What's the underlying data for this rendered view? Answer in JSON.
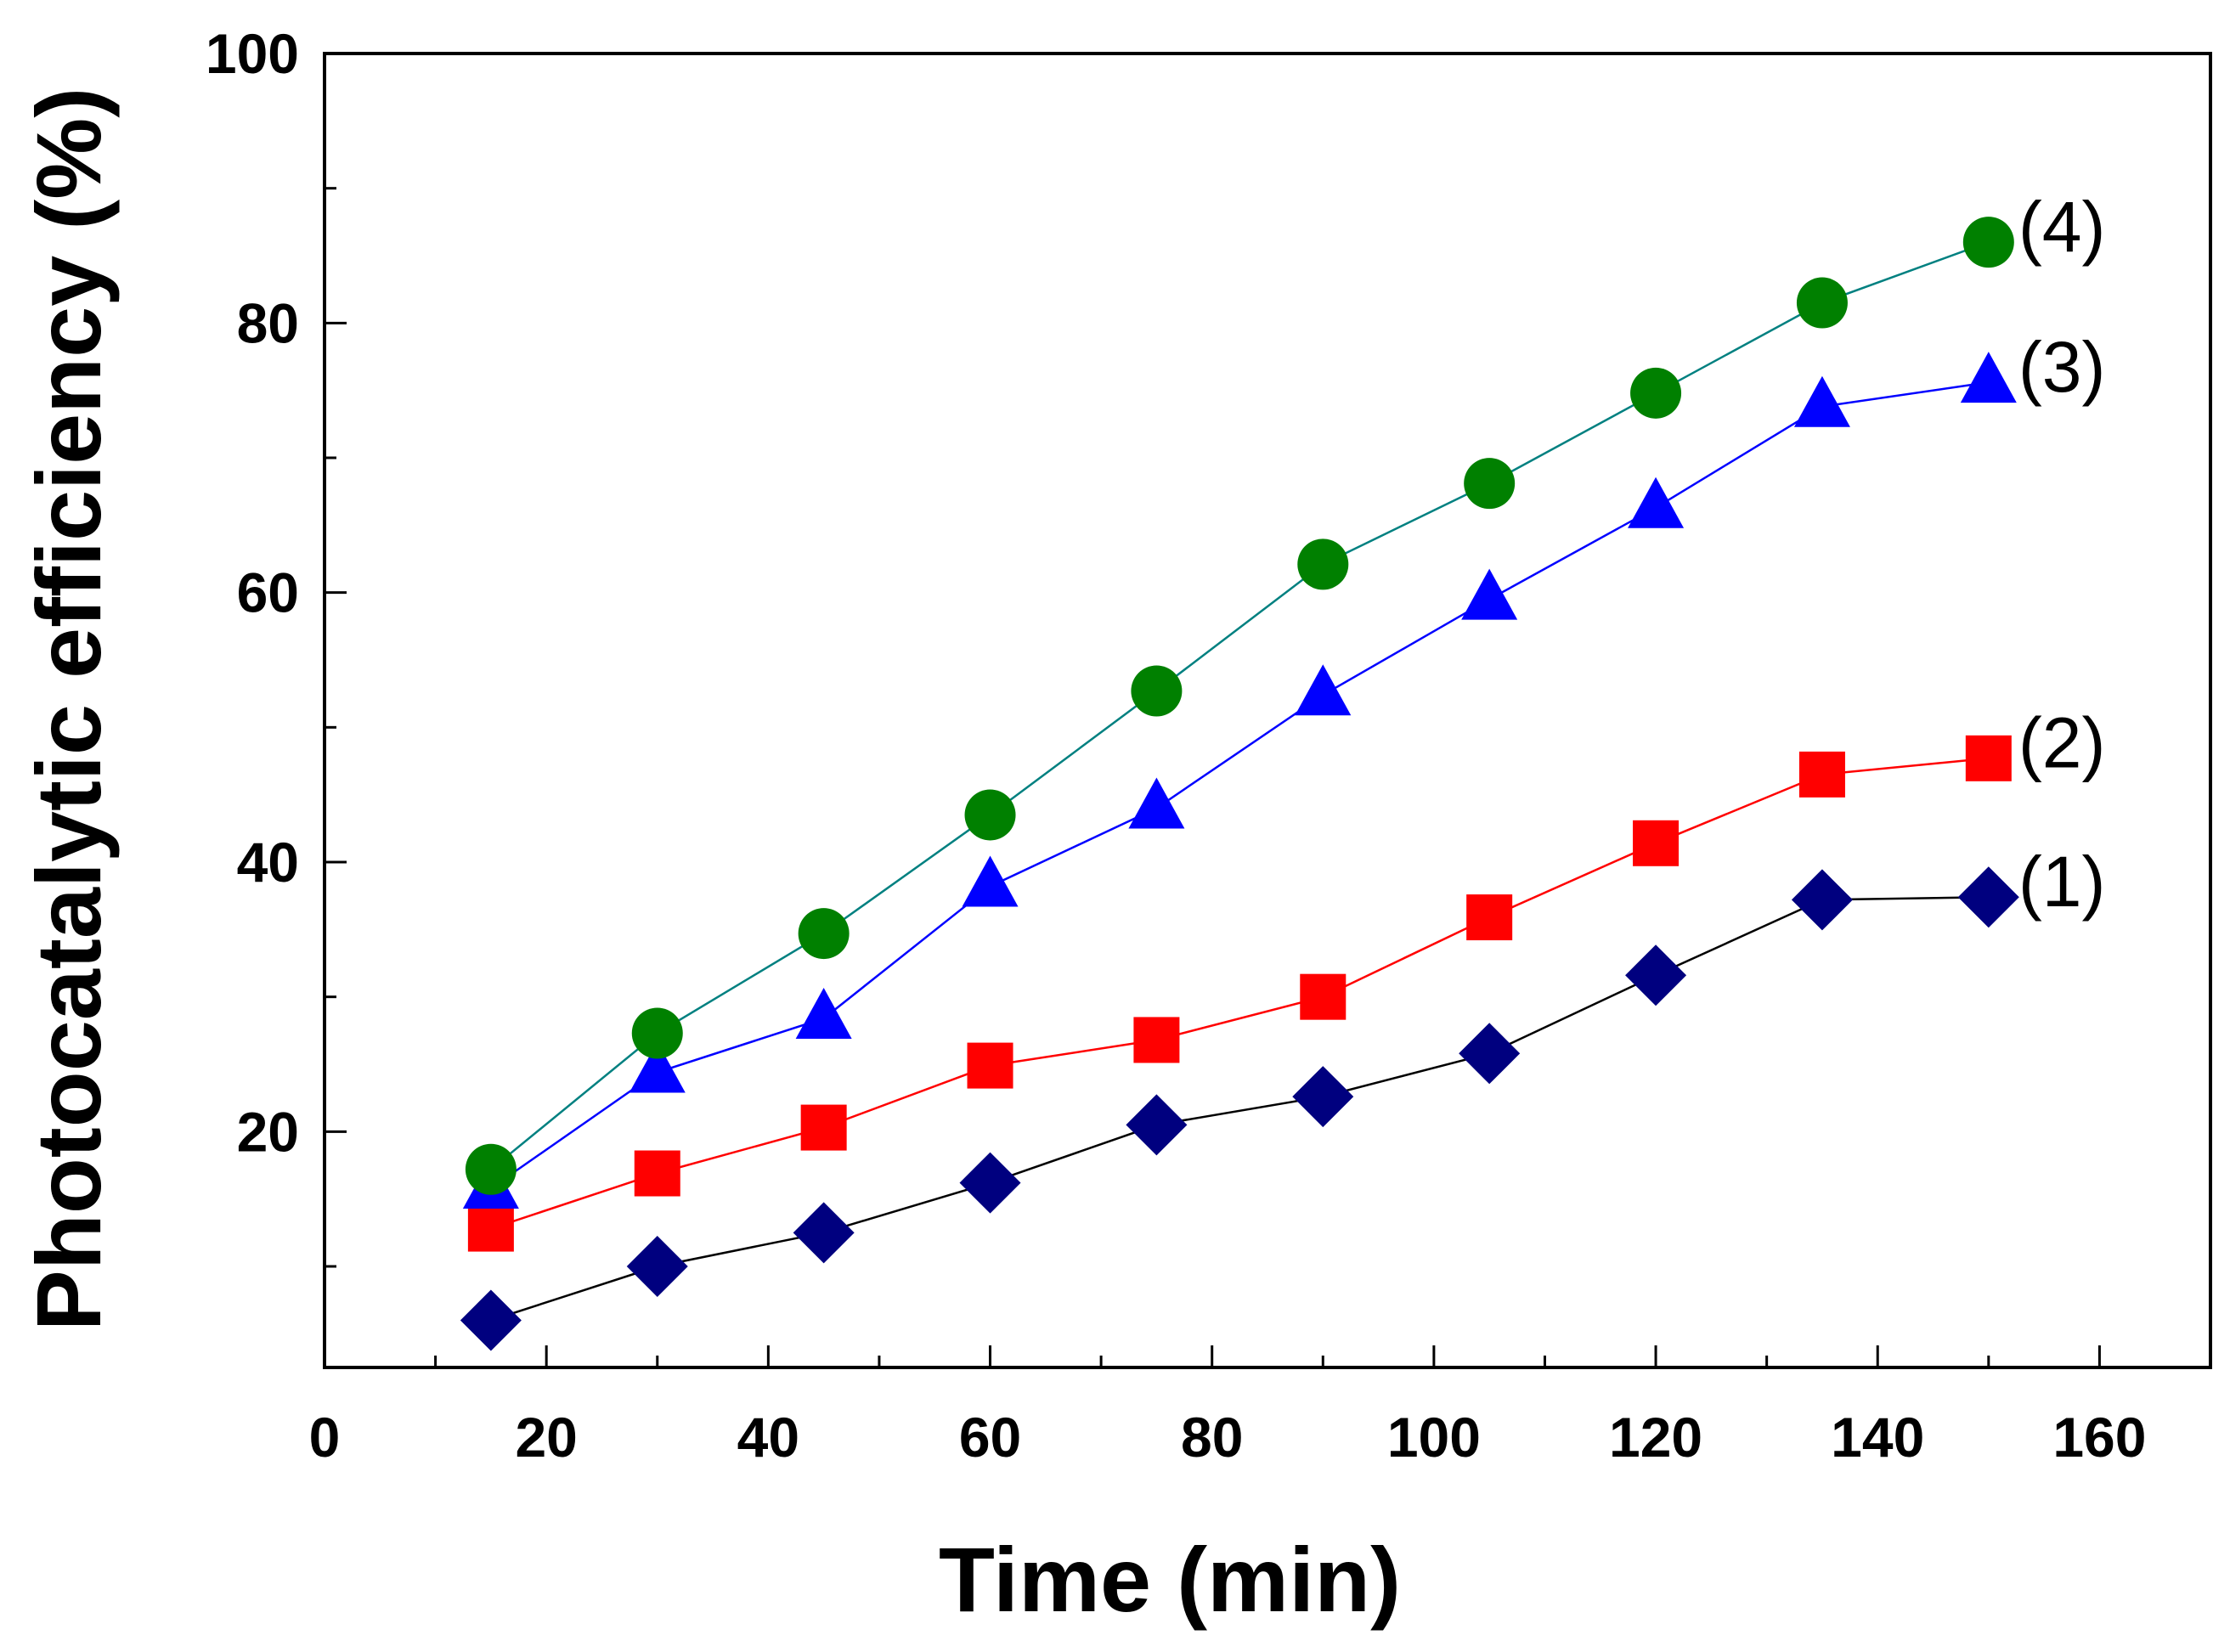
{
  "chart_data": {
    "type": "line",
    "title": "",
    "xlabel": "Time (min)",
    "ylabel": "Photocatalytic efficiency (%)",
    "xlim": [
      0,
      170
    ],
    "ylim": [
      2.5,
      100
    ],
    "xticks": [
      0,
      20,
      40,
      60,
      80,
      100,
      120,
      140,
      160
    ],
    "yticks": [
      20,
      40,
      60,
      80,
      100
    ],
    "x": [
      15,
      30,
      45,
      60,
      75,
      90,
      105,
      120,
      135,
      150
    ],
    "series": [
      {
        "name": "(1)",
        "marker": "diamond",
        "line_color": "#000000",
        "marker_color": "#00007F",
        "values": [
          6.0,
          10.0,
          12.5,
          16.2,
          20.5,
          22.6,
          25.8,
          31.6,
          37.2,
          37.4
        ]
      },
      {
        "name": "(2)",
        "marker": "square",
        "line_color": "#FF0000",
        "marker_color": "#FF0000",
        "values": [
          12.8,
          16.9,
          20.3,
          24.9,
          26.8,
          30.0,
          35.9,
          41.4,
          46.5,
          47.7
        ]
      },
      {
        "name": "(3)",
        "marker": "triangle",
        "line_color": "#0000FF",
        "marker_color": "#0000FF",
        "values": [
          15.8,
          24.4,
          28.4,
          38.2,
          44.0,
          52.4,
          59.5,
          66.3,
          73.8,
          75.6
        ]
      },
      {
        "name": "(4)",
        "marker": "circle",
        "line_color": "#008080",
        "marker_color": "#008000",
        "values": [
          17.2,
          27.3,
          34.7,
          43.5,
          52.7,
          62.1,
          68.1,
          74.8,
          81.5,
          86.0
        ]
      }
    ]
  }
}
